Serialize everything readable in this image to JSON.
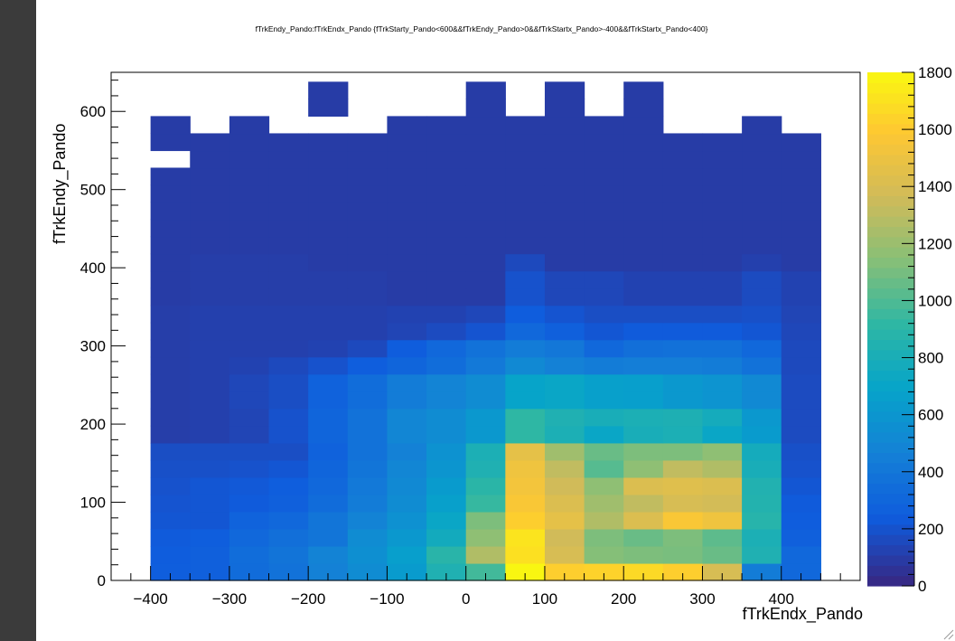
{
  "chart_data": {
    "type": "heatmap",
    "title": "fTrkEndy_Pando:fTrkEndx_Pando {fTrkStarty_Pando<600&&fTrkEndy_Pando>0&&fTrkStartx_Pando>-400&&fTrkStartx_Pando<400}",
    "xlabel": "fTrkEndx_Pando",
    "ylabel": "fTrkEndy_Pando",
    "xlim": [
      -450,
      500
    ],
    "ylim": [
      0,
      650
    ],
    "x_ticks": [
      "-400",
      "-300",
      "-200",
      "-100",
      "0",
      "100",
      "200",
      "300",
      "400"
    ],
    "y_ticks": [
      "0",
      "100",
      "200",
      "300",
      "400",
      "500",
      "600"
    ],
    "z_range": [
      0,
      1800
    ],
    "z_ticks": [
      "0",
      "200",
      "400",
      "600",
      "800",
      "1000",
      "1200",
      "1400",
      "1600",
      "1800"
    ],
    "x_bin_edges": [
      -450,
      -400,
      -350,
      -300,
      -250,
      -200,
      -150,
      -100,
      -50,
      0,
      50,
      100,
      150,
      200,
      250,
      300,
      350,
      400,
      450,
      500
    ],
    "y_bin_edges": [
      0,
      22,
      44,
      66,
      88,
      110,
      132,
      154,
      176,
      198,
      220,
      242,
      264,
      286,
      308,
      330,
      352,
      374,
      396,
      418,
      440,
      462,
      484,
      506,
      528,
      550,
      572,
      594,
      616,
      638
    ],
    "z_rows": [
      [
        0,
        240,
        250,
        320,
        360,
        450,
        520,
        620,
        820,
        950,
        1780,
        1600,
        1620,
        1650,
        1600,
        1380,
        420,
        300,
        0
      ],
      [
        0,
        230,
        250,
        330,
        370,
        460,
        540,
        640,
        870,
        1250,
        1680,
        1380,
        1120,
        1100,
        1090,
        1050,
        820,
        300,
        0
      ],
      [
        0,
        220,
        240,
        300,
        340,
        380,
        520,
        600,
        750,
        1150,
        1700,
        1350,
        1100,
        1050,
        1100,
        1020,
        800,
        250,
        0
      ],
      [
        0,
        200,
        200,
        270,
        300,
        380,
        460,
        550,
        700,
        1100,
        1600,
        1450,
        1250,
        1400,
        1550,
        1500,
        860,
        230,
        0
      ],
      [
        0,
        190,
        200,
        220,
        250,
        320,
        420,
        520,
        650,
        920,
        1550,
        1400,
        1200,
        1300,
        1380,
        1360,
        840,
        220,
        0
      ],
      [
        0,
        180,
        200,
        210,
        240,
        300,
        400,
        500,
        620,
        880,
        1520,
        1350,
        1150,
        1400,
        1420,
        1400,
        830,
        200,
        0
      ],
      [
        0,
        170,
        170,
        180,
        200,
        280,
        380,
        480,
        580,
        820,
        1500,
        1300,
        1000,
        1150,
        1300,
        1250,
        780,
        180,
        0
      ],
      [
        0,
        160,
        160,
        160,
        160,
        260,
        360,
        450,
        560,
        800,
        1450,
        1200,
        1050,
        1100,
        1100,
        1150,
        760,
        170,
        0
      ],
      [
        0,
        90,
        100,
        120,
        180,
        280,
        360,
        480,
        520,
        600,
        900,
        800,
        700,
        780,
        800,
        700,
        620,
        150,
        0
      ],
      [
        0,
        90,
        100,
        120,
        180,
        280,
        360,
        480,
        520,
        600,
        900,
        820,
        780,
        800,
        810,
        760,
        600,
        150,
        0
      ],
      [
        0,
        90,
        100,
        130,
        160,
        260,
        330,
        420,
        470,
        520,
        680,
        700,
        650,
        640,
        600,
        570,
        500,
        150,
        0
      ],
      [
        0,
        90,
        100,
        130,
        160,
        260,
        330,
        420,
        470,
        520,
        680,
        700,
        650,
        640,
        600,
        570,
        500,
        150,
        0
      ],
      [
        0,
        90,
        100,
        110,
        140,
        180,
        240,
        280,
        330,
        400,
        500,
        450,
        420,
        430,
        430,
        420,
        360,
        140,
        0
      ],
      [
        0,
        90,
        100,
        100,
        100,
        110,
        140,
        230,
        300,
        360,
        420,
        390,
        300,
        340,
        350,
        350,
        300,
        140,
        0
      ],
      [
        0,
        90,
        100,
        100,
        100,
        100,
        100,
        120,
        150,
        190,
        300,
        250,
        200,
        220,
        220,
        220,
        200,
        130,
        0
      ],
      [
        0,
        90,
        100,
        100,
        100,
        100,
        100,
        110,
        110,
        130,
        230,
        190,
        160,
        160,
        160,
        160,
        170,
        120,
        0
      ],
      [
        0,
        80,
        90,
        90,
        90,
        90,
        90,
        80,
        80,
        80,
        180,
        130,
        130,
        110,
        110,
        110,
        150,
        110,
        0
      ],
      [
        0,
        80,
        90,
        90,
        90,
        90,
        90,
        80,
        80,
        80,
        180,
        130,
        130,
        110,
        110,
        110,
        150,
        110,
        0
      ],
      [
        0,
        80,
        90,
        90,
        90,
        80,
        80,
        80,
        80,
        80,
        140,
        80,
        80,
        80,
        80,
        80,
        100,
        80,
        0
      ],
      [
        0,
        80,
        80,
        80,
        80,
        80,
        80,
        80,
        80,
        80,
        80,
        80,
        80,
        80,
        80,
        80,
        80,
        80,
        0
      ],
      [
        0,
        80,
        80,
        80,
        80,
        80,
        80,
        80,
        80,
        80,
        80,
        80,
        80,
        80,
        80,
        80,
        80,
        80,
        0
      ],
      [
        0,
        80,
        80,
        80,
        80,
        80,
        80,
        80,
        80,
        80,
        80,
        80,
        80,
        80,
        80,
        80,
        80,
        80,
        0
      ],
      [
        0,
        80,
        80,
        80,
        80,
        80,
        80,
        80,
        80,
        80,
        80,
        80,
        80,
        80,
        80,
        80,
        80,
        80,
        0
      ],
      [
        0,
        80,
        80,
        80,
        80,
        80,
        80,
        80,
        80,
        80,
        80,
        80,
        80,
        80,
        80,
        80,
        80,
        80,
        0
      ],
      [
        0,
        0,
        80,
        80,
        80,
        80,
        80,
        80,
        80,
        80,
        80,
        80,
        80,
        80,
        80,
        80,
        80,
        80,
        0
      ],
      [
        0,
        80,
        80,
        80,
        80,
        80,
        80,
        80,
        80,
        80,
        80,
        80,
        80,
        80,
        80,
        80,
        80,
        80,
        0
      ],
      [
        0,
        80,
        0,
        80,
        0,
        0,
        0,
        80,
        80,
        80,
        80,
        80,
        80,
        80,
        0,
        0,
        80,
        0,
        0
      ],
      [
        0,
        0,
        0,
        0,
        0,
        80,
        0,
        0,
        0,
        80,
        0,
        80,
        0,
        80,
        0,
        0,
        0,
        0,
        0
      ],
      [
        0,
        0,
        0,
        0,
        0,
        80,
        0,
        0,
        0,
        80,
        0,
        80,
        0,
        80,
        0,
        0,
        0,
        0,
        0
      ]
    ],
    "colorscale": [
      "#352a87",
      "#0f5cdd",
      "#1481d6",
      "#06a4ca",
      "#2eb7a4",
      "#87bf77",
      "#d1bb59",
      "#fec832",
      "#f9fb0e"
    ]
  }
}
